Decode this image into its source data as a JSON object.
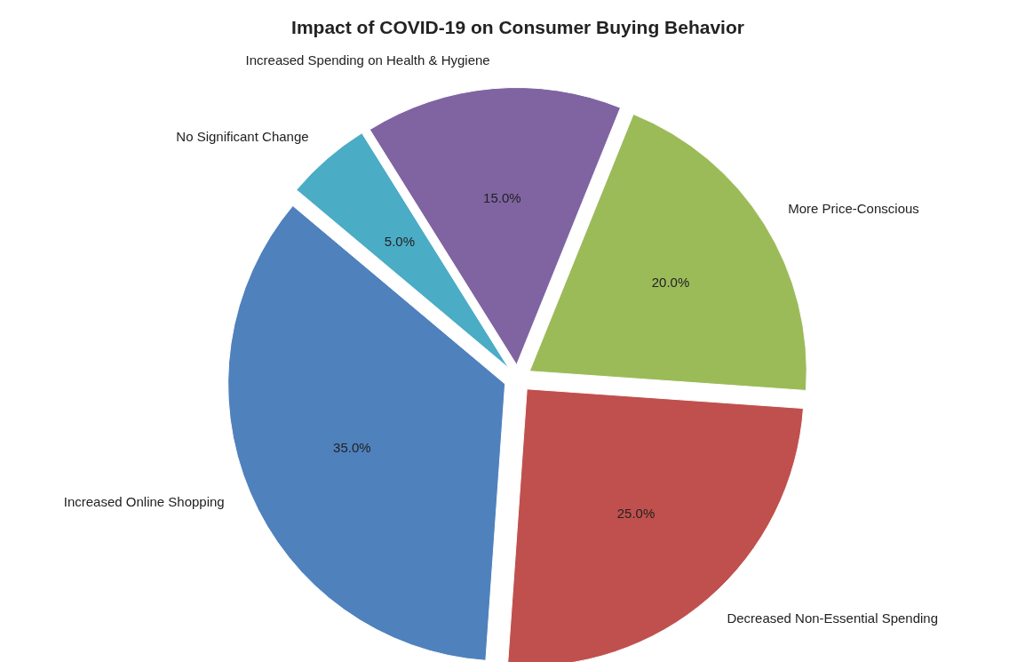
{
  "chart_data": {
    "type": "pie",
    "title": "Impact of COVID-19 on Consumer Buying Behavior",
    "categories": [
      "Increased Online Shopping",
      "Decreased Non-Essential Spending",
      "More Price-Conscious",
      "Increased Spending on Health & Hygiene",
      "No Significant Change"
    ],
    "values": [
      35,
      25,
      20,
      15,
      5
    ],
    "colors": [
      "#4f81bd",
      "#c0504d",
      "#9bbb59",
      "#8064a2",
      "#4bacc6"
    ],
    "value_labels": [
      "35.0%",
      "25.0%",
      "20.0%",
      "15.0%",
      "5.0%"
    ]
  }
}
